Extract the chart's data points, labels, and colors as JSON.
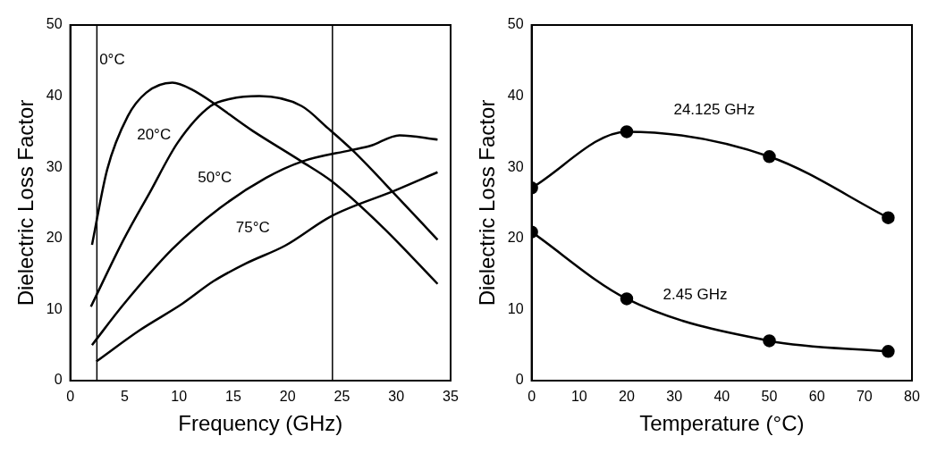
{
  "chart_data": [
    {
      "type": "line",
      "xlabel": "Frequency (GHz)",
      "ylabel": "Dielectric Loss Factor",
      "xlim": [
        0,
        35
      ],
      "xticks": [
        0,
        5,
        10,
        15,
        20,
        25,
        30,
        35
      ],
      "ylim": [
        0,
        50
      ],
      "yticks": [
        0,
        10,
        20,
        30,
        40,
        50
      ],
      "grid": false,
      "legend": false,
      "series": [
        {
          "name": "0°C",
          "color": "#000000",
          "x": [
            2,
            3.4,
            5.3,
            7,
            9.4,
            11.1,
            16.8,
            21.3,
            24,
            28.8,
            33.8
          ],
          "values": [
            19.1,
            29.7,
            37.2,
            40.5,
            41.9,
            41,
            35.1,
            30.8,
            28.1,
            21.5,
            13.6
          ]
        },
        {
          "name": "20°C",
          "color": "#000000",
          "x": [
            1.9,
            4.9,
            7.3,
            9.9,
            12.9,
            14.7,
            17.4,
            21.3,
            23.7,
            26.1,
            30,
            33.8
          ],
          "values": [
            10.4,
            19.8,
            26.4,
            33.5,
            38.6,
            39.6,
            40,
            38.6,
            35.5,
            32.2,
            26,
            19.8
          ]
        },
        {
          "name": "50°C",
          "color": "#000000",
          "x": [
            2,
            4.9,
            9.4,
            13.8,
            18,
            21.3,
            25.8,
            27.6,
            30.3,
            33.8
          ],
          "values": [
            5,
            10.7,
            18.5,
            24.3,
            28.5,
            30.8,
            32.4,
            33,
            34.5,
            33.9
          ]
        },
        {
          "name": "75°C",
          "color": "#000000",
          "x": [
            2.4,
            6.4,
            10.3,
            13.2,
            16.2,
            19.8,
            24,
            30,
            33.8
          ],
          "values": [
            2.7,
            7.1,
            10.8,
            14,
            16.5,
            19,
            23.1,
            26.8,
            29.3
          ]
        }
      ],
      "ref_lines": [
        {
          "axis": "x",
          "value": 2.45,
          "color": "#000000"
        },
        {
          "axis": "x",
          "value": 24.125,
          "color": "#000000"
        }
      ]
    },
    {
      "type": "line",
      "xlabel": "Temperature (°C)",
      "ylabel": "Dielectric Loss Factor",
      "xlim": [
        0,
        80
      ],
      "xticks": [
        0,
        10,
        20,
        30,
        40,
        50,
        60,
        70,
        80
      ],
      "ylim": [
        0,
        50
      ],
      "yticks": [
        0,
        10,
        20,
        30,
        40,
        50
      ],
      "grid": false,
      "legend": false,
      "marker": "circle",
      "x": [
        0,
        20,
        50,
        75
      ],
      "series": [
        {
          "name": "24.125 GHz",
          "color": "#000000",
          "values": [
            27.1,
            35,
            31.5,
            22.9
          ]
        },
        {
          "name": "2.45 GHz",
          "color": "#000000",
          "values": [
            20.9,
            11.5,
            5.6,
            4.1
          ]
        }
      ]
    }
  ]
}
